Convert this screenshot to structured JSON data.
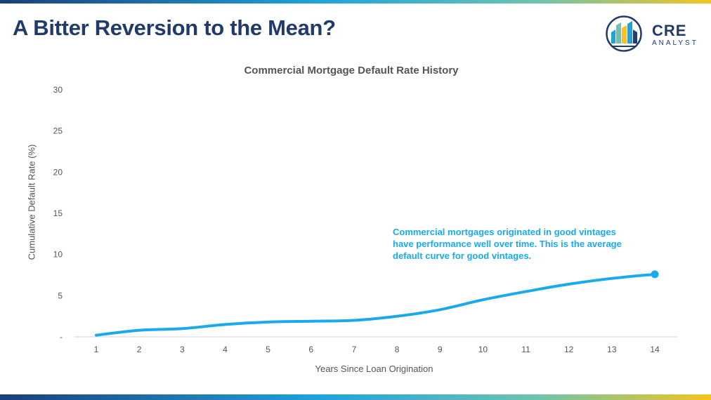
{
  "slide": {
    "title": "A Bitter Reversion to the Mean?"
  },
  "logo": {
    "line1": "CRE",
    "line2": "ANALYST",
    "icon": "city-skyline-logo-icon"
  },
  "colors": {
    "title": "#1f3a6b",
    "series": "#19aaeb",
    "text": "#555555",
    "axis": "#d0d0d0"
  },
  "chart_data": {
    "type": "line",
    "title": "Commercial Mortgage Default Rate History",
    "xlabel": "Years Since Loan Origination",
    "ylabel": "Cumulative Default Rate (%)",
    "x": [
      1,
      2,
      3,
      4,
      5,
      6,
      7,
      8,
      9,
      10,
      11,
      12,
      13,
      14
    ],
    "y_tick_labels": [
      "-",
      "5",
      "10",
      "15",
      "20",
      "25",
      "30"
    ],
    "ylim": [
      0,
      30
    ],
    "grid": false,
    "series": [
      {
        "values": [
          0.2,
          0.8,
          1.0,
          1.5,
          1.8,
          1.9,
          2.0,
          2.5,
          3.3,
          4.5,
          5.5,
          6.4,
          7.1,
          7.6
        ],
        "end_marker": true
      }
    ],
    "annotation": "Commercial mortgages originated in good vintages have performance well over time. This is the average default curve for good vintages."
  }
}
